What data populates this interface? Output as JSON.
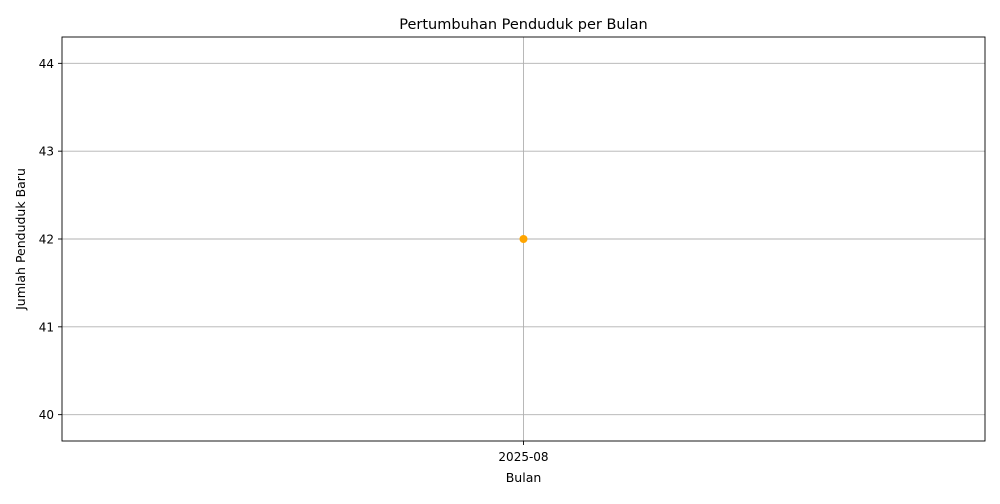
{
  "chart_data": {
    "type": "line",
    "title": "Pertumbuhan Penduduk per Bulan",
    "xlabel": "Bulan",
    "ylabel": "Jumlah Penduduk Baru",
    "categories": [
      "2025-08"
    ],
    "series": [
      {
        "values": [
          42
        ],
        "color": "#ffa500",
        "marker": "circle"
      }
    ],
    "yticks": [
      40,
      41,
      42,
      43,
      44
    ],
    "ylim": [
      39.7,
      44.3
    ],
    "grid": true,
    "legend": false
  }
}
